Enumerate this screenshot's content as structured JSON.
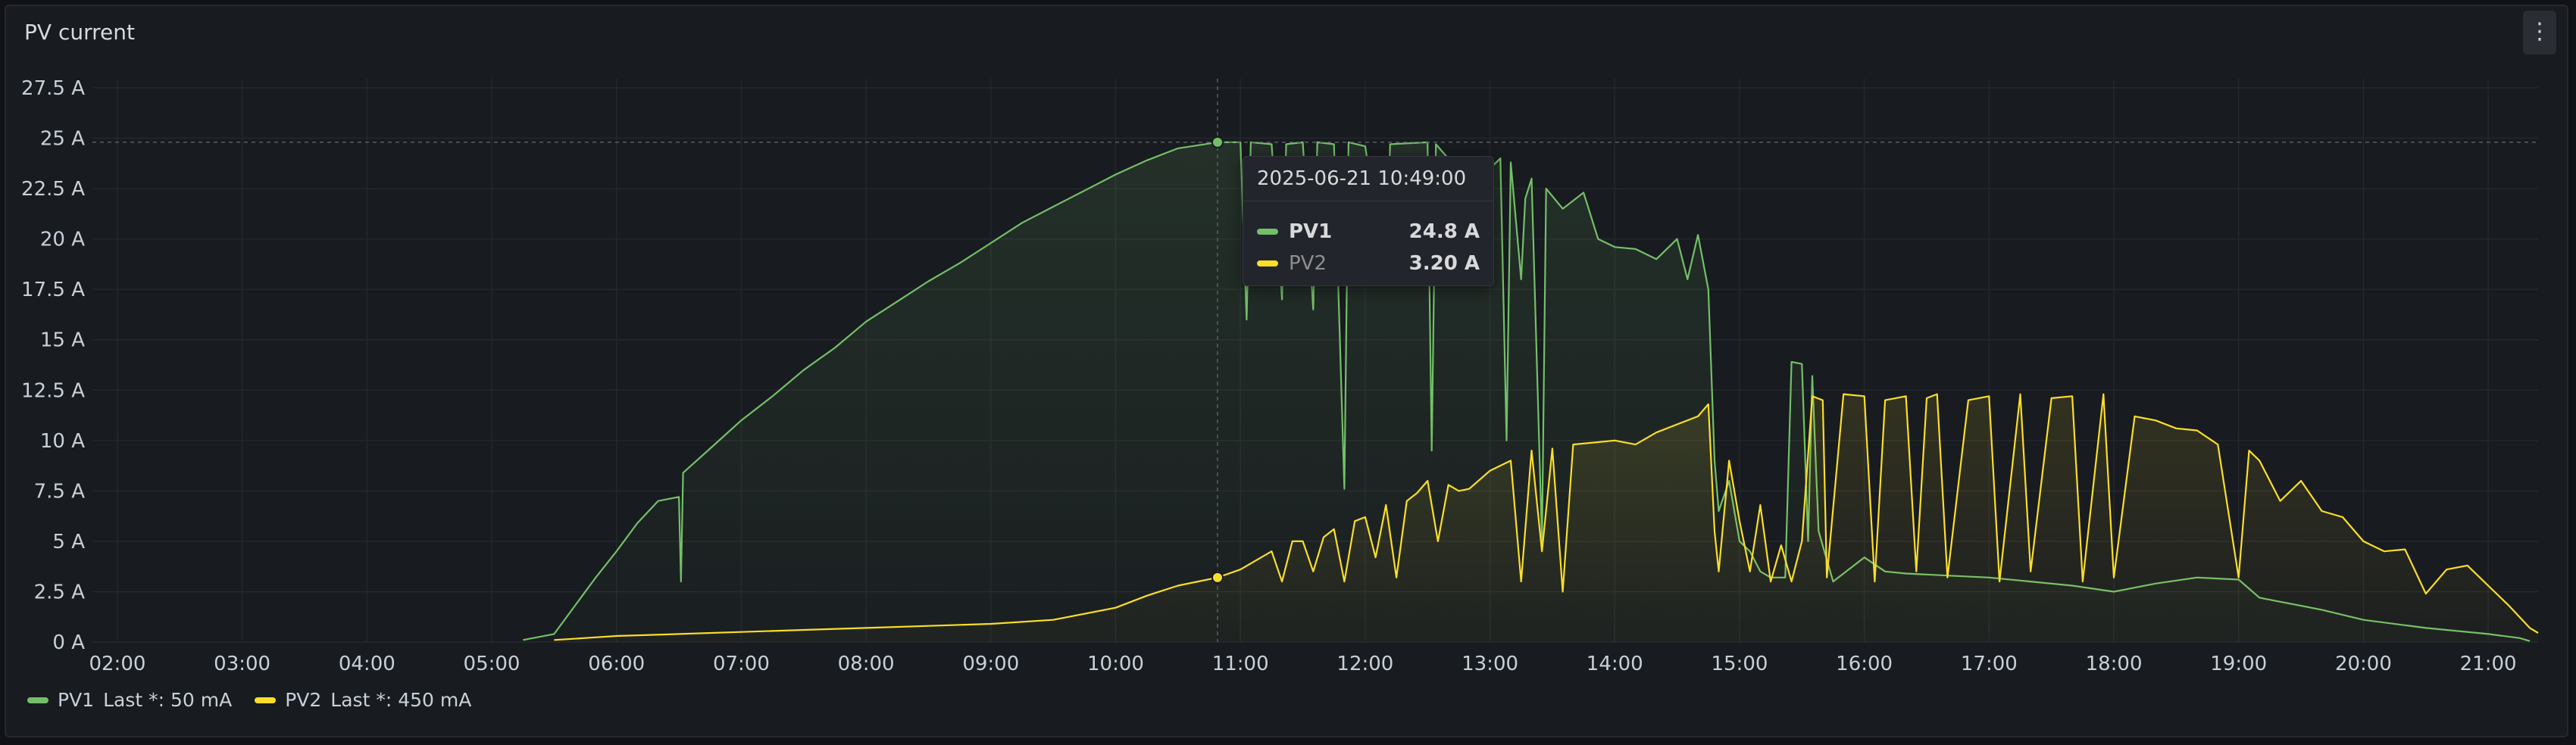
{
  "panel": {
    "title": "PV current",
    "menu_icon": "kebab-menu-icon"
  },
  "tooltip": {
    "time": "2025-06-21 10:49:00",
    "rows": [
      {
        "name": "PV1",
        "value": "24.8 A"
      },
      {
        "name": "PV2",
        "value": "3.20 A"
      }
    ]
  },
  "legend": [
    {
      "name": "PV1",
      "text": "Last *: 50 mA",
      "color": "#73bf69"
    },
    {
      "name": "PV2",
      "text": "Last *: 450 mA",
      "color": "#fade2a"
    }
  ],
  "chart_data": {
    "type": "line",
    "title": "PV current",
    "xlabel": "",
    "ylabel": "",
    "x_ticks": [
      "02:00",
      "03:00",
      "04:00",
      "05:00",
      "06:00",
      "07:00",
      "08:00",
      "09:00",
      "10:00",
      "11:00",
      "12:00",
      "13:00",
      "14:00",
      "15:00",
      "16:00",
      "17:00",
      "18:00",
      "19:00",
      "20:00",
      "21:00"
    ],
    "y_ticks": [
      "0 A",
      "2.5 A",
      "5 A",
      "7.5 A",
      "10 A",
      "12.5 A",
      "15 A",
      "17.5 A",
      "20 A",
      "22.5 A",
      "25 A",
      "27.5 A"
    ],
    "xlim": [
      "01:48",
      "21:24"
    ],
    "ylim": [
      0,
      27.5
    ],
    "grid": true,
    "legend_position": "bottom-left",
    "crosshair": {
      "x": "10:49",
      "y": 24.8
    },
    "series": [
      {
        "name": "PV1",
        "color": "#73bf69",
        "points": [
          [
            "05:15",
            0.1
          ],
          [
            "05:30",
            0.4
          ],
          [
            "05:40",
            1.8
          ],
          [
            "05:50",
            3.2
          ],
          [
            "06:00",
            4.5
          ],
          [
            "06:10",
            5.9
          ],
          [
            "06:20",
            7.0
          ],
          [
            "06:30",
            7.2
          ],
          [
            "06:31",
            3.0
          ],
          [
            "06:32",
            8.4
          ],
          [
            "06:45",
            9.6
          ],
          [
            "07:00",
            11.0
          ],
          [
            "07:15",
            12.2
          ],
          [
            "07:30",
            13.5
          ],
          [
            "07:45",
            14.6
          ],
          [
            "08:00",
            15.9
          ],
          [
            "08:15",
            16.9
          ],
          [
            "08:30",
            17.9
          ],
          [
            "08:45",
            18.8
          ],
          [
            "09:00",
            19.8
          ],
          [
            "09:15",
            20.8
          ],
          [
            "09:30",
            21.6
          ],
          [
            "09:45",
            22.4
          ],
          [
            "10:00",
            23.2
          ],
          [
            "10:15",
            23.9
          ],
          [
            "10:30",
            24.5
          ],
          [
            "10:49",
            24.8
          ],
          [
            "11:00",
            24.8
          ],
          [
            "11:03",
            16.0
          ],
          [
            "11:05",
            24.8
          ],
          [
            "11:15",
            24.7
          ],
          [
            "11:20",
            17.0
          ],
          [
            "11:22",
            24.7
          ],
          [
            "11:30",
            24.8
          ],
          [
            "11:35",
            16.5
          ],
          [
            "11:37",
            24.8
          ],
          [
            "11:45",
            24.7
          ],
          [
            "11:50",
            7.6
          ],
          [
            "11:52",
            24.8
          ],
          [
            "12:00",
            24.6
          ],
          [
            "12:10",
            18.0
          ],
          [
            "12:12",
            24.7
          ],
          [
            "12:30",
            24.8
          ],
          [
            "12:32",
            9.5
          ],
          [
            "12:34",
            24.7
          ],
          [
            "12:50",
            22.8
          ],
          [
            "13:00",
            23.5
          ],
          [
            "13:05",
            24.0
          ],
          [
            "13:08",
            10.0
          ],
          [
            "13:10",
            23.8
          ],
          [
            "13:15",
            18.0
          ],
          [
            "13:17",
            22.0
          ],
          [
            "13:20",
            23.0
          ],
          [
            "13:25",
            5.0
          ],
          [
            "13:27",
            22.5
          ],
          [
            "13:35",
            21.5
          ],
          [
            "13:45",
            22.3
          ],
          [
            "13:52",
            20.0
          ],
          [
            "14:00",
            19.6
          ],
          [
            "14:10",
            19.5
          ],
          [
            "14:20",
            19.0
          ],
          [
            "14:30",
            20.0
          ],
          [
            "14:35",
            18.0
          ],
          [
            "14:40",
            20.2
          ],
          [
            "14:45",
            17.5
          ],
          [
            "14:48",
            9.0
          ],
          [
            "14:50",
            6.5
          ],
          [
            "14:55",
            8.0
          ],
          [
            "15:00",
            5.0
          ],
          [
            "15:05",
            4.5
          ],
          [
            "15:10",
            3.5
          ],
          [
            "15:15",
            3.2
          ],
          [
            "15:22",
            3.2
          ],
          [
            "15:25",
            13.9
          ],
          [
            "15:30",
            13.8
          ],
          [
            "15:33",
            5.0
          ],
          [
            "15:35",
            13.2
          ],
          [
            "15:38",
            5.5
          ],
          [
            "15:45",
            3.0
          ],
          [
            "16:00",
            4.2
          ],
          [
            "16:10",
            3.5
          ],
          [
            "16:20",
            3.4
          ],
          [
            "16:40",
            3.3
          ],
          [
            "17:00",
            3.2
          ],
          [
            "17:20",
            3.0
          ],
          [
            "17:40",
            2.8
          ],
          [
            "18:00",
            2.5
          ],
          [
            "18:20",
            2.9
          ],
          [
            "18:40",
            3.2
          ],
          [
            "19:00",
            3.1
          ],
          [
            "19:10",
            2.2
          ],
          [
            "19:20",
            2.0
          ],
          [
            "19:40",
            1.6
          ],
          [
            "20:00",
            1.1
          ],
          [
            "20:30",
            0.7
          ],
          [
            "21:00",
            0.4
          ],
          [
            "21:15",
            0.2
          ],
          [
            "21:20",
            0.05
          ]
        ]
      },
      {
        "name": "PV2",
        "color": "#fade2a",
        "points": [
          [
            "05:30",
            0.1
          ],
          [
            "05:45",
            0.2
          ],
          [
            "06:00",
            0.3
          ],
          [
            "06:30",
            0.4
          ],
          [
            "07:00",
            0.5
          ],
          [
            "07:30",
            0.6
          ],
          [
            "08:00",
            0.7
          ],
          [
            "08:30",
            0.8
          ],
          [
            "09:00",
            0.9
          ],
          [
            "09:30",
            1.1
          ],
          [
            "10:00",
            1.7
          ],
          [
            "10:15",
            2.3
          ],
          [
            "10:30",
            2.8
          ],
          [
            "10:49",
            3.2
          ],
          [
            "11:00",
            3.6
          ],
          [
            "11:10",
            4.2
          ],
          [
            "11:15",
            4.5
          ],
          [
            "11:20",
            3.0
          ],
          [
            "11:25",
            5.0
          ],
          [
            "11:30",
            5.0
          ],
          [
            "11:35",
            3.5
          ],
          [
            "11:40",
            5.2
          ],
          [
            "11:45",
            5.6
          ],
          [
            "11:50",
            3.0
          ],
          [
            "11:55",
            6.0
          ],
          [
            "12:00",
            6.2
          ],
          [
            "12:05",
            4.2
          ],
          [
            "12:10",
            6.8
          ],
          [
            "12:15",
            3.2
          ],
          [
            "12:20",
            7.0
          ],
          [
            "12:25",
            7.4
          ],
          [
            "12:30",
            8.0
          ],
          [
            "12:35",
            5.0
          ],
          [
            "12:40",
            7.8
          ],
          [
            "12:45",
            7.5
          ],
          [
            "12:50",
            7.6
          ],
          [
            "13:00",
            8.5
          ],
          [
            "13:10",
            9.0
          ],
          [
            "13:15",
            3.0
          ],
          [
            "13:20",
            9.5
          ],
          [
            "13:25",
            4.5
          ],
          [
            "13:30",
            9.6
          ],
          [
            "13:35",
            2.5
          ],
          [
            "13:40",
            9.8
          ],
          [
            "13:50",
            9.9
          ],
          [
            "14:00",
            10.0
          ],
          [
            "14:10",
            9.8
          ],
          [
            "14:20",
            10.4
          ],
          [
            "14:30",
            10.8
          ],
          [
            "14:40",
            11.2
          ],
          [
            "14:45",
            11.8
          ],
          [
            "14:48",
            5.5
          ],
          [
            "14:50",
            3.5
          ],
          [
            "14:55",
            9.0
          ],
          [
            "15:00",
            6.0
          ],
          [
            "15:05",
            3.5
          ],
          [
            "15:10",
            6.8
          ],
          [
            "15:15",
            3.0
          ],
          [
            "15:20",
            4.8
          ],
          [
            "15:25",
            3.0
          ],
          [
            "15:30",
            5.0
          ],
          [
            "15:35",
            12.2
          ],
          [
            "15:40",
            12.0
          ],
          [
            "15:42",
            3.2
          ],
          [
            "15:50",
            12.3
          ],
          [
            "16:00",
            12.2
          ],
          [
            "16:05",
            3.0
          ],
          [
            "16:10",
            12.0
          ],
          [
            "16:20",
            12.2
          ],
          [
            "16:25",
            3.5
          ],
          [
            "16:30",
            12.1
          ],
          [
            "16:35",
            12.3
          ],
          [
            "16:40",
            3.2
          ],
          [
            "16:50",
            12.0
          ],
          [
            "17:00",
            12.2
          ],
          [
            "17:05",
            3.0
          ],
          [
            "17:15",
            12.3
          ],
          [
            "17:20",
            3.5
          ],
          [
            "17:30",
            12.1
          ],
          [
            "17:40",
            12.2
          ],
          [
            "17:45",
            3.0
          ],
          [
            "17:55",
            12.3
          ],
          [
            "18:00",
            3.2
          ],
          [
            "18:10",
            11.2
          ],
          [
            "18:20",
            11.0
          ],
          [
            "18:30",
            10.6
          ],
          [
            "18:40",
            10.5
          ],
          [
            "18:50",
            9.8
          ],
          [
            "19:00",
            3.2
          ],
          [
            "19:05",
            9.5
          ],
          [
            "19:10",
            9.0
          ],
          [
            "19:20",
            7.0
          ],
          [
            "19:30",
            8.0
          ],
          [
            "19:40",
            6.5
          ],
          [
            "19:50",
            6.2
          ],
          [
            "20:00",
            5.0
          ],
          [
            "20:10",
            4.5
          ],
          [
            "20:20",
            4.6
          ],
          [
            "20:30",
            2.4
          ],
          [
            "20:40",
            3.6
          ],
          [
            "20:50",
            3.8
          ],
          [
            "21:00",
            2.8
          ],
          [
            "21:10",
            1.8
          ],
          [
            "21:20",
            0.7
          ],
          [
            "21:24",
            0.45
          ]
        ]
      }
    ]
  }
}
